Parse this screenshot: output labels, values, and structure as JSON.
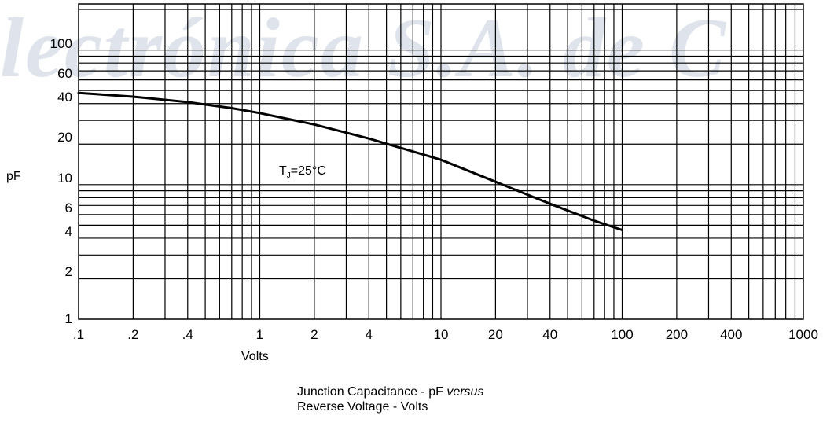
{
  "watermark": "lectrónica S.A. de C",
  "chart_data": {
    "type": "line",
    "xscale": "log",
    "yscale": "log",
    "xlim": [
      0.1,
      1000
    ],
    "ylim": [
      1,
      220
    ],
    "grid": true,
    "xlabel": "Volts",
    "ylabel": "pF",
    "x_tick_labels": [
      {
        "value": 0.1,
        "label": ".1"
      },
      {
        "value": 0.2,
        "label": ".2"
      },
      {
        "value": 0.4,
        "label": ".4"
      },
      {
        "value": 1,
        "label": "1"
      },
      {
        "value": 2,
        "label": "2"
      },
      {
        "value": 4,
        "label": "4"
      },
      {
        "value": 10,
        "label": "10"
      },
      {
        "value": 20,
        "label": "20"
      },
      {
        "value": 40,
        "label": "40"
      },
      {
        "value": 100,
        "label": "100"
      },
      {
        "value": 200,
        "label": "200"
      },
      {
        "value": 400,
        "label": "400"
      },
      {
        "value": 1000,
        "label": "1000"
      }
    ],
    "y_tick_labels": [
      {
        "value": 1,
        "label": "1"
      },
      {
        "value": 2,
        "label": "2"
      },
      {
        "value": 4,
        "label": "4"
      },
      {
        "value": 6,
        "label": "6"
      },
      {
        "value": 10,
        "label": "10"
      },
      {
        "value": 20,
        "label": "20"
      },
      {
        "value": 40,
        "label": "40"
      },
      {
        "value": 60,
        "label": "60"
      },
      {
        "value": 100,
        "label": "100"
      }
    ],
    "annotation": {
      "main": "T",
      "sub": "J",
      "rest": "=25°C"
    },
    "series": [
      {
        "x": [
          0.1,
          0.2,
          0.4,
          0.7,
          1,
          2,
          4,
          10,
          20,
          40,
          70,
          100
        ],
        "y": [
          48,
          45,
          41,
          37,
          34,
          28,
          22,
          15.3,
          10.5,
          7.2,
          5.4,
          4.6
        ]
      }
    ]
  },
  "caption": {
    "line1_text": "Junction Capacitance - pF ",
    "line1_italic": "versus",
    "line2": "Reverse Voltage - Volts"
  }
}
